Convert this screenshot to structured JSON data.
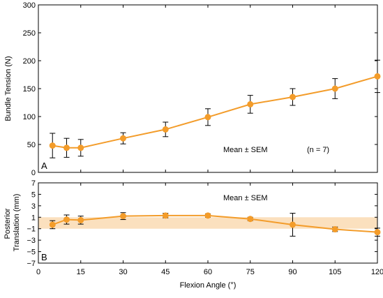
{
  "chart_data": [
    {
      "type": "line",
      "panel": "A",
      "ylabel": "Bundle Tension (N)",
      "xlabel": "",
      "xlim": [
        0,
        120
      ],
      "ylim": [
        0,
        300
      ],
      "x_ticks": [
        "0",
        "15",
        "30",
        "45",
        "60",
        "75",
        "90",
        "105",
        "120"
      ],
      "y_ticks": [
        "0",
        "50",
        "100",
        "150",
        "200",
        "250",
        "300"
      ],
      "annotations": [
        "Mean ± SEM",
        "(n = 7)"
      ],
      "grid": false,
      "color": "#f39c2a",
      "series": [
        {
          "x": [
            5,
            10,
            15,
            30,
            45,
            60,
            75,
            90,
            105,
            120
          ],
          "y": [
            48,
            44,
            44,
            61,
            77,
            99,
            122,
            135,
            150,
            172
          ],
          "err": [
            22,
            17,
            15,
            10,
            13,
            15,
            16,
            15,
            18,
            29
          ]
        }
      ]
    },
    {
      "type": "line",
      "panel": "B",
      "ylabel": "Posterior Translation (mm)",
      "xlabel": "Flexion Angle (°)",
      "xlim": [
        0,
        120
      ],
      "ylim": [
        -7,
        7
      ],
      "x_ticks": [
        "0",
        "15",
        "30",
        "45",
        "60",
        "75",
        "90",
        "105",
        "120"
      ],
      "y_ticks": [
        "7",
        "5",
        "3",
        "1",
        "−1",
        "−3",
        "−5",
        "−7"
      ],
      "annotations": [
        "Mean ± SEM"
      ],
      "band": [
        -1,
        1
      ],
      "band_color": "#f9d6a8",
      "grid": false,
      "color": "#f39c2a",
      "series": [
        {
          "x": [
            5,
            10,
            15,
            30,
            45,
            60,
            75,
            90,
            105,
            120
          ],
          "y": [
            -0.3,
            0.6,
            0.5,
            1.2,
            1.3,
            1.3,
            0.7,
            -0.3,
            -1.1,
            -1.6
          ],
          "err": [
            0.7,
            0.8,
            0.7,
            0.6,
            0.4,
            0.3,
            0.3,
            2.0,
            0.4,
            0.7
          ]
        }
      ]
    }
  ]
}
